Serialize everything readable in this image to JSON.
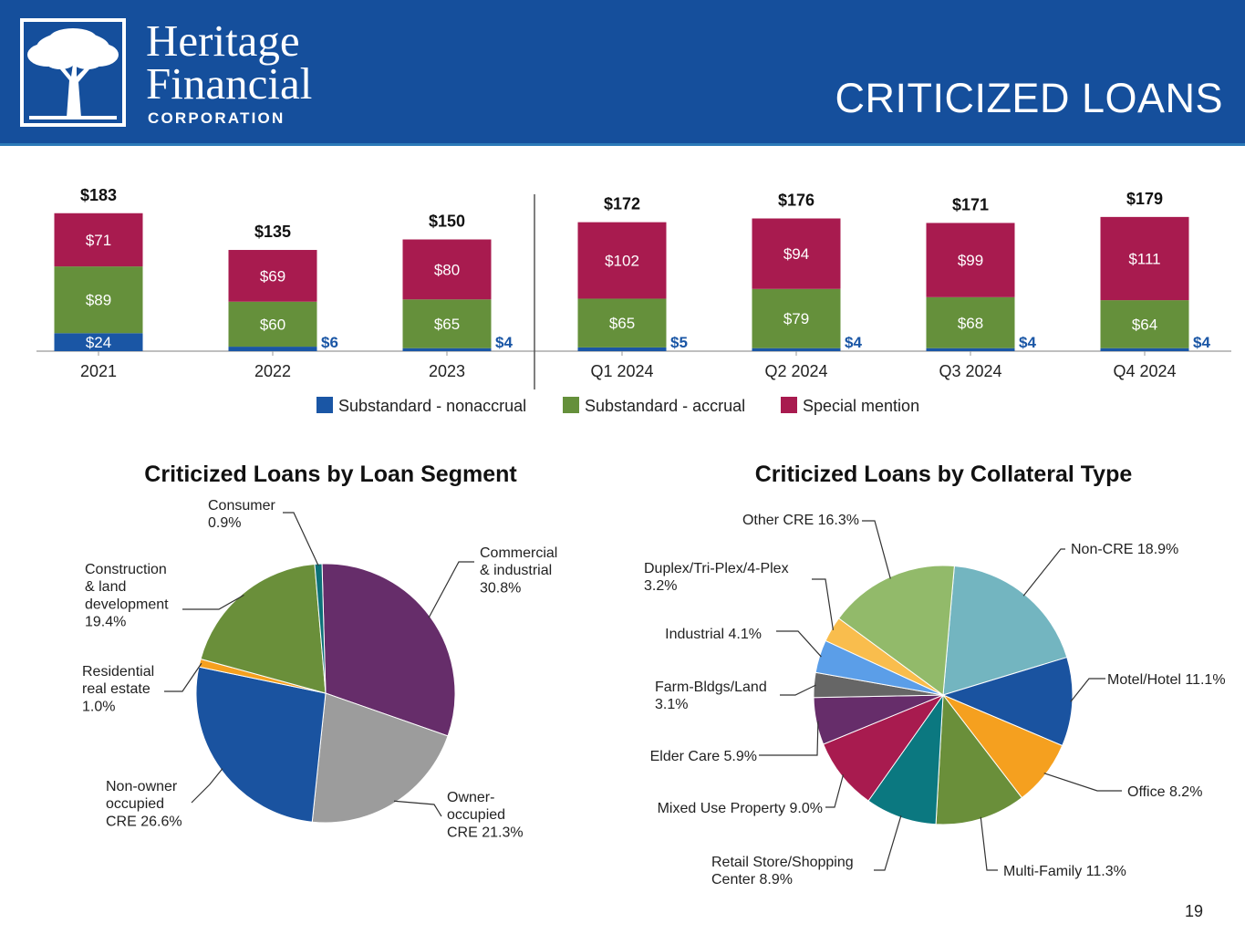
{
  "header": {
    "brand_line1": "Heritage",
    "brand_line2": "Financial",
    "brand_sub": "CORPORATION",
    "page_title": "CRITICIZED LOANS",
    "bg_color": "#154f9c"
  },
  "page_number": "19",
  "chart_data": [
    {
      "type": "bar",
      "stacked": true,
      "title": "",
      "categories": [
        "2021",
        "2022",
        "2023",
        "Q1 2024",
        "Q2 2024",
        "Q3 2024",
        "Q4 2024"
      ],
      "totals": [
        "$183",
        "$135",
        "$150",
        "$172",
        "$176",
        "$171",
        "$179"
      ],
      "series": [
        {
          "name": "Substandard - nonaccrual",
          "color": "#1a56a5",
          "values": [
            24,
            6,
            4,
            5,
            4,
            4,
            4
          ],
          "labels": [
            "$24",
            "$6",
            "$4",
            "$5",
            "$4",
            "$4",
            "$4"
          ],
          "label_position": [
            "inside",
            "outside",
            "outside",
            "outside",
            "outside",
            "outside",
            "outside"
          ]
        },
        {
          "name": "Substandard - accrual",
          "color": "#65903b",
          "values": [
            89,
            60,
            65,
            65,
            79,
            68,
            64
          ],
          "labels": [
            "$89",
            "$60",
            "$65",
            "$65",
            "$79",
            "$68",
            "$64"
          ]
        },
        {
          "name": "Special mention",
          "color": "#a81b4f",
          "values": [
            71,
            69,
            80,
            102,
            94,
            99,
            111
          ],
          "labels": [
            "$71",
            "$69",
            "$80",
            "$102",
            "$94",
            "$99",
            "$111"
          ]
        }
      ],
      "ylim": [
        0,
        190
      ],
      "divider_after": "2023",
      "legend": "bottom"
    },
    {
      "type": "pie",
      "title": "Criticized Loans by Loan Segment",
      "start_angle_deg": -1.6,
      "slices": [
        {
          "label": "Commercial\n& industrial\n30.8%",
          "value": 30.8,
          "color": "#662d6a"
        },
        {
          "label": "Owner-\noccupied\nCRE 21.3%",
          "value": 21.3,
          "color": "#9c9c9c"
        },
        {
          "label": "Non-owner\noccupied\nCRE 26.6%",
          "value": 26.6,
          "color": "#1a53a0"
        },
        {
          "label": "Residential\nreal estate\n1.0%",
          "value": 1.0,
          "color": "#f5a01f"
        },
        {
          "label": "Construction\n& land\ndevelopment\n19.4%",
          "value": 19.4,
          "color": "#6a8f3a"
        },
        {
          "label": "Consumer\n0.9%",
          "value": 0.9,
          "color": "#0c7178"
        }
      ]
    },
    {
      "type": "pie",
      "title": "Criticized Loans by Collateral Type",
      "start_angle_deg": 5,
      "slices": [
        {
          "label": "Non-CRE 18.9%",
          "value": 18.9,
          "color": "#73b5c0"
        },
        {
          "label": "Motel/Hotel 11.1%",
          "value": 11.1,
          "color": "#1a53a0"
        },
        {
          "label": "Office 8.2%",
          "value": 8.2,
          "color": "#f5a01f"
        },
        {
          "label": "Multi-Family 11.3%",
          "value": 11.3,
          "color": "#6a8f3a"
        },
        {
          "label": "Retail Store/Shopping\nCenter 8.9%",
          "value": 8.9,
          "color": "#0b7880"
        },
        {
          "label": "Mixed Use Property 9.0%",
          "value": 9.0,
          "color": "#a81b4f"
        },
        {
          "label": "Elder Care 5.9%",
          "value": 5.9,
          "color": "#662d6a"
        },
        {
          "label": "Farm-Bldgs/Land\n3.1%",
          "value": 3.1,
          "color": "#666666"
        },
        {
          "label": "Industrial 4.1%",
          "value": 4.1,
          "color": "#5b9ee8"
        },
        {
          "label": "Duplex/Tri-Plex/4-Plex\n3.2%",
          "value": 3.2,
          "color": "#f9bd4d"
        },
        {
          "label": "Other CRE 16.3%",
          "value": 16.3,
          "color": "#92ba6a"
        }
      ]
    }
  ]
}
